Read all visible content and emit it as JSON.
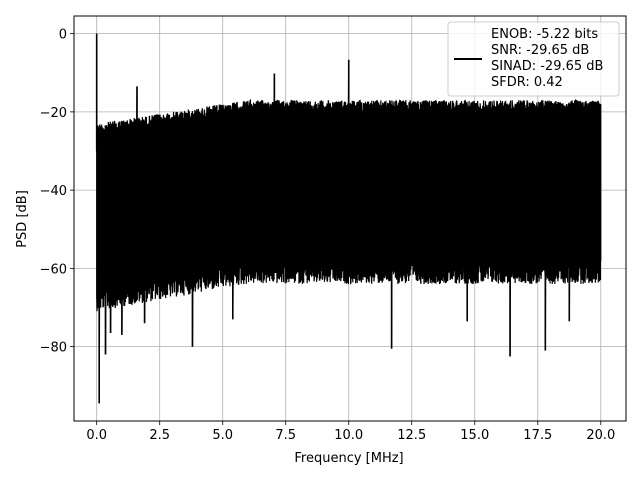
{
  "chart_data": {
    "type": "line",
    "title": "",
    "xlabel": "Frequency [MHz]",
    "ylabel": "PSD [dB]",
    "xlim": [
      -0.9,
      21.0
    ],
    "ylim": [
      -99,
      4.5
    ],
    "grid": true,
    "x_ticks": [
      0.0,
      2.5,
      5.0,
      7.5,
      10.0,
      12.5,
      15.0,
      17.5,
      20.0
    ],
    "x_tick_labels": [
      "0.0",
      "2.5",
      "5.0",
      "7.5",
      "10.0",
      "12.5",
      "15.0",
      "17.5",
      "20.0"
    ],
    "y_ticks": [
      0,
      -20,
      -40,
      -60,
      -80
    ],
    "y_tick_labels": [
      "0",
      "−20",
      "−40",
      "−60",
      "−80"
    ],
    "legend": {
      "position": "top-right",
      "lines": [
        "ENOB: -5.22 bits",
        "SNR: -29.65 dB",
        "SINAD: -29.65 dB",
        "SFDR: 0.42"
      ]
    },
    "series": [
      {
        "color": "#000000",
        "noise_floor": {
          "x_start": 0.0,
          "x_end": 20.0,
          "upper_db": [
            -23,
            -17
          ],
          "lower_db": [
            -65,
            -58
          ]
        },
        "peaks": [
          {
            "x": 0.0,
            "y": 0.0
          },
          {
            "x": 1.6,
            "y": -13.5
          },
          {
            "x": 7.05,
            "y": -10.2
          },
          {
            "x": 10.0,
            "y": -6.7
          }
        ],
        "dips": [
          {
            "x": 0.1,
            "y": -94.5
          },
          {
            "x": 0.35,
            "y": -82.0
          },
          {
            "x": 0.55,
            "y": -76.5
          },
          {
            "x": 1.0,
            "y": -77.0
          },
          {
            "x": 1.9,
            "y": -74.0
          },
          {
            "x": 3.8,
            "y": -80.0
          },
          {
            "x": 5.4,
            "y": -73.0
          },
          {
            "x": 11.7,
            "y": -80.5
          },
          {
            "x": 14.7,
            "y": -73.5
          },
          {
            "x": 16.4,
            "y": -82.5
          },
          {
            "x": 17.8,
            "y": -81.0
          },
          {
            "x": 18.75,
            "y": -73.5
          }
        ]
      }
    ]
  }
}
